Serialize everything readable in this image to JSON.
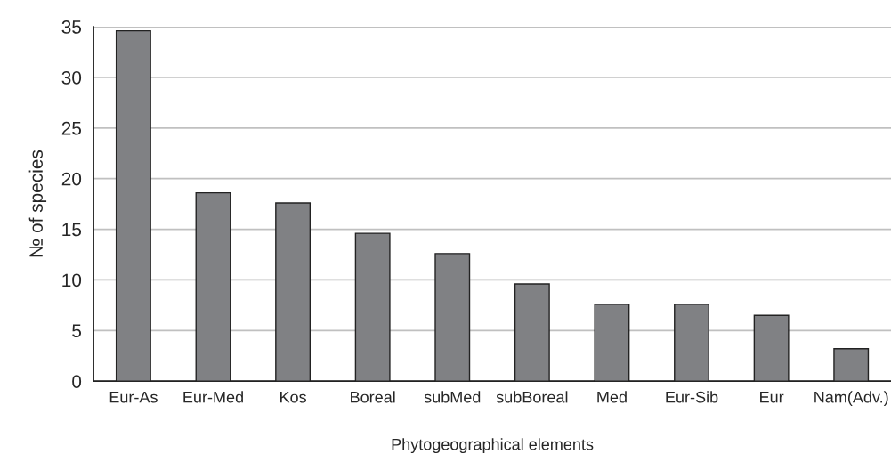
{
  "chart_data": {
    "type": "bar",
    "xlabel": "Phytogeographical elements",
    "ylabel": "№ of species",
    "categories": [
      "Eur-As",
      "Eur-Med",
      "Kos",
      "Boreal",
      "subMed",
      "subBoreal",
      "Med",
      "Eur-Sib",
      "Eur",
      "Nam(Adv.)"
    ],
    "values": [
      34.6,
      18.6,
      17.6,
      14.6,
      12.6,
      9.6,
      7.6,
      7.6,
      6.5,
      3.2
    ],
    "color": "#808184",
    "ylim": [
      0,
      35
    ],
    "yticks": [
      0,
      5,
      10,
      15,
      20,
      25,
      30,
      35
    ],
    "grid": "y"
  }
}
